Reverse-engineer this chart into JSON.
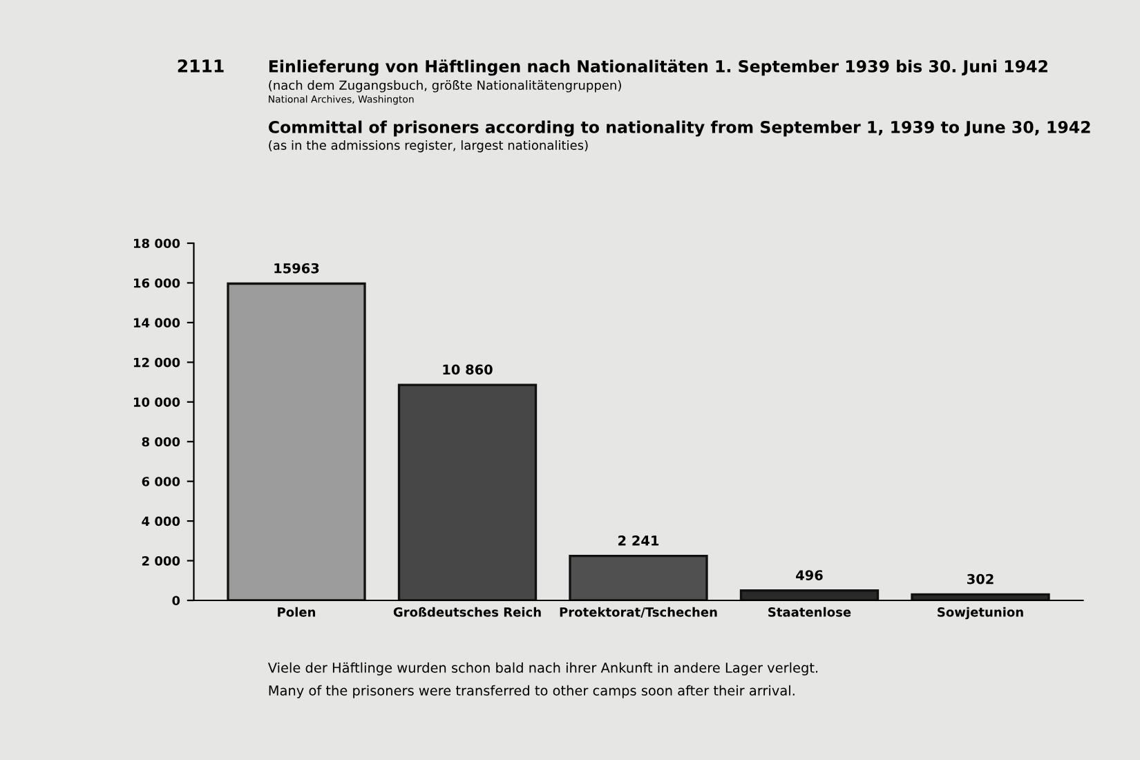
{
  "chart_data": {
    "type": "bar",
    "title": "Einlieferung von Häftlingen nach Nationalitäten 1. September 1939 bis 30. Juni 1942",
    "subtitle": "(nach dem Zugangsbuch, größte Nationalitätengruppen)",
    "annotations": [
      "2111",
      "National Archives, Washington",
      "Committal of prisoners according to nationality from September 1, 1939 to June 30, 1942",
      "(as in the admissions register, largest nationalities)",
      "Viele der Häftlinge wurden schon bald nach ihrer Ankunft in andere Lager verlegt.",
      "Many of the prisoners were transferred to other camps soon after their arrival."
    ],
    "categories": [
      "Polen",
      "Großdeutsches Reich",
      "Protektorat/Tschechen",
      "Staatenlose",
      "Sowjetunion"
    ],
    "values": [
      15963,
      10860,
      2241,
      496,
      302
    ],
    "colors": [
      "#9c9c9c",
      "#474747",
      "#505050",
      "#2a2a2a",
      "#2a2a2a"
    ],
    "value_labels": [
      "15963",
      "10 860",
      "2 241",
      "496",
      "302"
    ],
    "ylim": [
      0,
      18000
    ],
    "yticks": [
      0,
      {
        "value": 2000,
        "label": "2 000"
      },
      {
        "value": 4000,
        "label": "4 000"
      },
      {
        "value": 6000,
        "label": "6 000"
      },
      {
        "value": 8000,
        "label": "8 000"
      },
      {
        "value": 10000,
        "label": "10 000"
      },
      {
        "value": 12000,
        "label": "12 000"
      },
      {
        "value": 14000,
        "label": "14 000"
      },
      {
        "value": 16000,
        "label": "16 000"
      },
      {
        "value": 18000,
        "label": "18 000"
      }
    ],
    "grid": false
  }
}
